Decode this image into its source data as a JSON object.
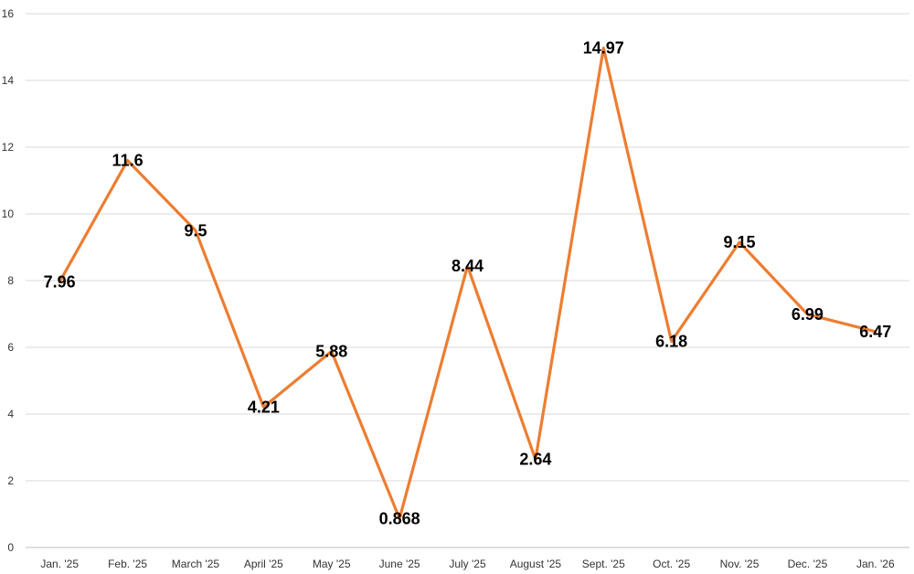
{
  "chart_data": {
    "type": "line",
    "title": "",
    "xlabel": "",
    "ylabel": "",
    "categories": [
      "Jan. '25",
      "Feb. '25",
      "March '25",
      "April '25",
      "May '25",
      "June '25",
      "July '25",
      "August '25",
      "Sept. '25",
      "Oct. '25",
      "Nov. '25",
      "Dec. '25",
      "Jan. '26"
    ],
    "series": [
      {
        "values": [
          7.96,
          11.6,
          9.5,
          4.21,
          5.88,
          0.868,
          8.44,
          2.64,
          14.97,
          6.18,
          9.15,
          6.99,
          6.47
        ],
        "labels": [
          "7.96",
          "11.6",
          "9.5",
          "4.21",
          "5.88",
          "0.868",
          "8.44",
          "2.64",
          "14.97",
          "6.18",
          "9.15",
          "6.99",
          "6.47"
        ],
        "color": "#ED7D31"
      }
    ],
    "ylim": [
      0,
      16
    ],
    "yticks": [
      0,
      2,
      4,
      6,
      8,
      10,
      12,
      14,
      16
    ],
    "ytick_labels": [
      "0",
      "2",
      "4",
      "6",
      "8",
      "10",
      "12",
      "14",
      "16"
    ],
    "grid": true,
    "legend": "none",
    "colors": {
      "line": "#ED7D31",
      "grid": "#D9D9D9",
      "axis": "#BFBFBF",
      "label": "#000000",
      "tick": "#333333"
    }
  }
}
